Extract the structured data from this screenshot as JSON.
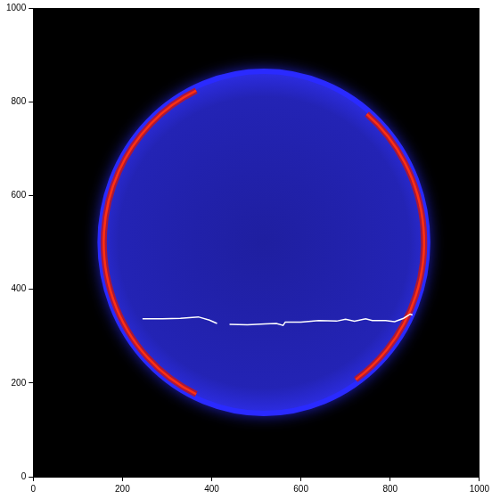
{
  "chart_data": {
    "type": "image",
    "xlim": [
      0,
      1000
    ],
    "ylim": [
      0,
      1000
    ],
    "xticks": [
      0,
      200,
      400,
      600,
      800,
      1000
    ],
    "yticks": [
      0,
      200,
      400,
      600,
      800,
      1000
    ],
    "grid": false,
    "ring": {
      "center": [
        517,
        500
      ],
      "radius": [
        367,
        365
      ],
      "color": "#2a2aff",
      "bright_arcs": [
        [
          115,
          245
        ],
        [
          -55,
          50
        ]
      ],
      "arc_color": "#ff3010"
    },
    "series": [
      {
        "type": "line",
        "color": "#ffffff",
        "x": [
          245,
          290,
          330,
          370,
          395,
          412,
          425,
          440,
          480,
          520,
          545,
          560,
          565,
          600,
          640,
          680,
          700,
          720,
          745,
          760,
          790,
          810,
          830,
          845,
          850
        ],
        "y": [
          337,
          337,
          338,
          341,
          334,
          327,
          null,
          325,
          324,
          326,
          327,
          323,
          330,
          330,
          333,
          332,
          336,
          332,
          337,
          333,
          333,
          331,
          338,
          347,
          345
        ]
      }
    ]
  }
}
